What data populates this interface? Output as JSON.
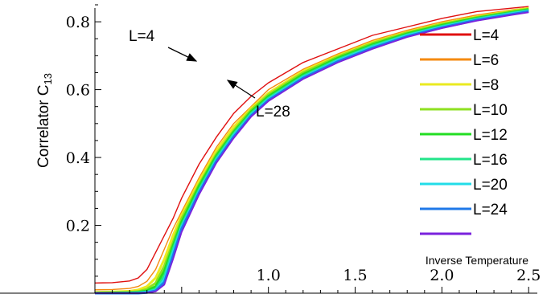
{
  "chart_data": {
    "type": "line",
    "title": "",
    "xlabel": "Inverse Temperature",
    "ylabel_main": "Correlator C",
    "ylabel_sub": "13",
    "xlim": [
      0.0,
      2.55
    ],
    "ylim": [
      0.0,
      0.85
    ],
    "x_ticks": [
      {
        "value": 1.0,
        "label": "1.0"
      },
      {
        "value": 1.5,
        "label": "1.5"
      },
      {
        "value": 2.0,
        "label": "2.0"
      },
      {
        "value": 2.5,
        "label": "2.5"
      }
    ],
    "y_ticks": [
      {
        "value": 0.2,
        "label": "0.2"
      },
      {
        "value": 0.4,
        "label": "0.4"
      },
      {
        "value": 0.6,
        "label": "0.6"
      },
      {
        "value": 0.8,
        "label": "0.8"
      }
    ],
    "legend_position": "right",
    "annotations": [
      {
        "text": "L=4",
        "x": 1.02,
        "y": 0.695
      },
      {
        "text": "L=28",
        "x": 1.1,
        "y": 0.63
      }
    ],
    "series": [
      {
        "name": "L=4",
        "color": "#e01010",
        "linewidth": 1.4,
        "x": [
          0.0,
          0.1,
          0.2,
          0.25,
          0.3,
          0.35,
          0.4,
          0.45,
          0.5,
          0.6,
          0.7,
          0.8,
          0.9,
          1.0,
          1.2,
          1.4,
          1.6,
          1.8,
          2.0,
          2.2,
          2.4,
          2.5
        ],
        "y": [
          0.03,
          0.031,
          0.036,
          0.045,
          0.07,
          0.12,
          0.17,
          0.22,
          0.28,
          0.38,
          0.46,
          0.53,
          0.58,
          0.62,
          0.68,
          0.72,
          0.76,
          0.785,
          0.81,
          0.83,
          0.84,
          0.845
        ]
      },
      {
        "name": "L=6",
        "color": "#f58a10",
        "linewidth": 1.4,
        "x": [
          0.0,
          0.1,
          0.2,
          0.25,
          0.3,
          0.35,
          0.4,
          0.45,
          0.5,
          0.6,
          0.7,
          0.8,
          0.9,
          1.0,
          1.2,
          1.4,
          1.6,
          1.8,
          2.0,
          2.2,
          2.4,
          2.5
        ],
        "y": [
          0.01,
          0.011,
          0.014,
          0.02,
          0.035,
          0.07,
          0.13,
          0.19,
          0.24,
          0.34,
          0.43,
          0.5,
          0.55,
          0.6,
          0.66,
          0.705,
          0.745,
          0.775,
          0.8,
          0.82,
          0.835,
          0.842
        ]
      },
      {
        "name": "L=8",
        "color": "#eaea20",
        "linewidth": 3,
        "x": [
          0.0,
          0.1,
          0.2,
          0.25,
          0.3,
          0.35,
          0.4,
          0.45,
          0.5,
          0.6,
          0.7,
          0.8,
          0.9,
          1.0,
          1.2,
          1.4,
          1.6,
          1.8,
          2.0,
          2.2,
          2.4,
          2.5
        ],
        "y": [
          0.003,
          0.004,
          0.006,
          0.01,
          0.02,
          0.045,
          0.1,
          0.17,
          0.23,
          0.33,
          0.42,
          0.49,
          0.545,
          0.59,
          0.655,
          0.7,
          0.74,
          0.77,
          0.795,
          0.815,
          0.832,
          0.84
        ]
      },
      {
        "name": "L=10",
        "color": "#8ee020",
        "linewidth": 3,
        "x": [
          0.0,
          0.1,
          0.2,
          0.25,
          0.3,
          0.35,
          0.4,
          0.45,
          0.5,
          0.6,
          0.7,
          0.8,
          0.9,
          1.0,
          1.2,
          1.4,
          1.6,
          1.8,
          2.0,
          2.2,
          2.4,
          2.5
        ],
        "y": [
          0.001,
          0.002,
          0.003,
          0.005,
          0.012,
          0.03,
          0.08,
          0.15,
          0.22,
          0.32,
          0.41,
          0.48,
          0.54,
          0.585,
          0.65,
          0.697,
          0.737,
          0.768,
          0.793,
          0.813,
          0.83,
          0.838
        ]
      },
      {
        "name": "L=12",
        "color": "#22dd22",
        "linewidth": 3,
        "x": [
          0.0,
          0.1,
          0.2,
          0.25,
          0.3,
          0.35,
          0.4,
          0.45,
          0.5,
          0.6,
          0.7,
          0.8,
          0.9,
          1.0,
          1.2,
          1.4,
          1.6,
          1.8,
          2.0,
          2.2,
          2.4,
          2.5
        ],
        "y": [
          0.0,
          0.001,
          0.002,
          0.003,
          0.007,
          0.02,
          0.065,
          0.14,
          0.21,
          0.315,
          0.405,
          0.475,
          0.535,
          0.58,
          0.645,
          0.693,
          0.733,
          0.765,
          0.79,
          0.811,
          0.828,
          0.836
        ]
      },
      {
        "name": "L=16",
        "color": "#22e48a",
        "linewidth": 3,
        "x": [
          0.0,
          0.1,
          0.2,
          0.25,
          0.3,
          0.35,
          0.4,
          0.45,
          0.5,
          0.6,
          0.7,
          0.8,
          0.9,
          1.0,
          1.2,
          1.4,
          1.6,
          1.8,
          2.0,
          2.2,
          2.4,
          2.5
        ],
        "y": [
          0.0,
          0.0,
          0.001,
          0.002,
          0.004,
          0.012,
          0.05,
          0.13,
          0.2,
          0.305,
          0.398,
          0.47,
          0.53,
          0.575,
          0.64,
          0.689,
          0.729,
          0.762,
          0.787,
          0.809,
          0.826,
          0.834
        ]
      },
      {
        "name": "L=20",
        "color": "#22dde8",
        "linewidth": 3,
        "x": [
          0.0,
          0.1,
          0.2,
          0.25,
          0.3,
          0.35,
          0.4,
          0.45,
          0.5,
          0.6,
          0.7,
          0.8,
          0.9,
          1.0,
          1.2,
          1.4,
          1.6,
          1.8,
          2.0,
          2.2,
          2.4,
          2.5
        ],
        "y": [
          0.0,
          0.0,
          0.0,
          0.001,
          0.003,
          0.009,
          0.04,
          0.12,
          0.195,
          0.3,
          0.393,
          0.465,
          0.526,
          0.572,
          0.637,
          0.686,
          0.726,
          0.76,
          0.785,
          0.807,
          0.824,
          0.832
        ]
      },
      {
        "name": "L=24",
        "color": "#1f78e8",
        "linewidth": 3,
        "x": [
          0.0,
          0.1,
          0.2,
          0.25,
          0.3,
          0.35,
          0.4,
          0.45,
          0.5,
          0.6,
          0.7,
          0.8,
          0.9,
          1.0,
          1.2,
          1.4,
          1.6,
          1.8,
          2.0,
          2.2,
          2.4,
          2.5
        ],
        "y": [
          0.0,
          0.0,
          0.0,
          0.0,
          0.002,
          0.007,
          0.032,
          0.11,
          0.19,
          0.296,
          0.389,
          0.461,
          0.523,
          0.569,
          0.634,
          0.683,
          0.723,
          0.757,
          0.783,
          0.805,
          0.822,
          0.83
        ]
      },
      {
        "name": "",
        "color": "#7a22dd",
        "linewidth": 1.8,
        "x": [
          0.0,
          0.1,
          0.2,
          0.25,
          0.3,
          0.35,
          0.4,
          0.45,
          0.5,
          0.6,
          0.7,
          0.8,
          0.9,
          1.0,
          1.2,
          1.4,
          1.6,
          1.8,
          2.0,
          2.2,
          2.4,
          2.5
        ],
        "y": [
          0.0,
          0.0,
          0.0,
          0.0,
          0.001,
          0.005,
          0.025,
          0.1,
          0.18,
          0.29,
          0.384,
          0.457,
          0.52,
          0.566,
          0.631,
          0.68,
          0.72,
          0.755,
          0.781,
          0.803,
          0.82,
          0.828
        ]
      }
    ]
  }
}
